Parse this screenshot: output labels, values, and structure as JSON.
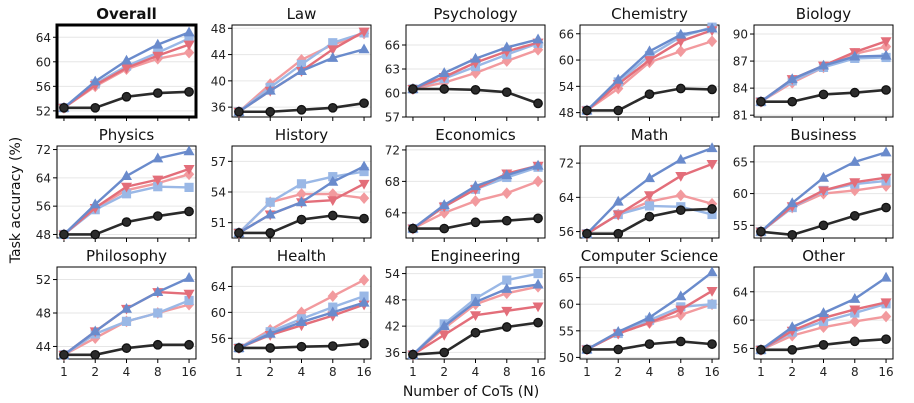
{
  "chart_data": {
    "type": "line",
    "xlabel": "Number of CoTs (N)",
    "ylabel": "Task accuracy (%)",
    "x": [
      1,
      2,
      4,
      8,
      16
    ],
    "x_tick_labels": [
      "1",
      "2",
      "4",
      "8",
      "16"
    ],
    "grid": "horizontal",
    "series_styles": [
      {
        "color": "#6a8bcc",
        "marker": "triangle"
      },
      {
        "color": "#e36e7a",
        "marker": "triangle-down"
      },
      {
        "color": "#9ab8e6",
        "marker": "square"
      },
      {
        "color": "#f29a9e",
        "marker": "diamond"
      },
      {
        "color": "#2b2b2b",
        "marker": "circle"
      }
    ],
    "panels": [
      {
        "title": "Overall",
        "highlight": true,
        "ylim": [
          51,
          66
        ],
        "yticks": [
          52,
          56,
          60,
          64
        ],
        "series": [
          [
            52.5,
            56.8,
            60.2,
            62.8,
            64.8
          ],
          [
            52.5,
            56.2,
            59.0,
            61.0,
            62.8
          ],
          [
            52.5,
            56.4,
            59.3,
            61.5,
            63.8
          ],
          [
            52.5,
            56.0,
            58.8,
            60.5,
            61.5
          ],
          [
            52.5,
            52.5,
            54.3,
            54.9,
            55.1
          ]
        ]
      },
      {
        "title": "Law",
        "ylim": [
          34.5,
          48.5
        ],
        "yticks": [
          36,
          40,
          44,
          48
        ],
        "series": [
          [
            35.3,
            38.5,
            41.5,
            43.5,
            44.8
          ],
          [
            35.3,
            38.5,
            41.5,
            44.8,
            47.5
          ],
          [
            35.3,
            39.0,
            42.5,
            45.8,
            47.3
          ],
          [
            35.3,
            39.5,
            43.2,
            45.5,
            47.2
          ],
          [
            35.3,
            35.3,
            35.6,
            35.9,
            36.6
          ]
        ]
      },
      {
        "title": "Psychology",
        "ylim": [
          57,
          68.5
        ],
        "yticks": [
          57,
          60,
          63,
          66
        ],
        "series": [
          [
            60.5,
            62.5,
            64.3,
            65.7,
            66.7
          ],
          [
            60.5,
            62.0,
            63.8,
            65.2,
            66.3
          ],
          [
            60.5,
            61.8,
            63.3,
            64.8,
            66.2
          ],
          [
            60.5,
            61.3,
            62.5,
            64.0,
            65.4
          ],
          [
            60.5,
            60.5,
            60.4,
            60.1,
            58.7
          ]
        ]
      },
      {
        "title": "Chemistry",
        "ylim": [
          47,
          68
        ],
        "yticks": [
          48,
          54,
          60,
          66
        ],
        "series": [
          [
            48.5,
            55.5,
            62.0,
            65.8,
            67.2
          ],
          [
            48.5,
            54.5,
            60.0,
            64.3,
            66.8
          ],
          [
            48.5,
            55.0,
            61.0,
            65.3,
            67.5
          ],
          [
            48.5,
            53.5,
            59.5,
            62.0,
            64.3
          ],
          [
            48.5,
            48.5,
            52.2,
            53.5,
            53.3
          ]
        ]
      },
      {
        "title": "Biology",
        "ylim": [
          80.8,
          91
        ],
        "yticks": [
          81,
          84,
          87,
          90
        ],
        "series": [
          [
            82.5,
            85.0,
            86.5,
            87.5,
            87.6
          ],
          [
            82.5,
            85.0,
            86.5,
            88.0,
            89.2
          ],
          [
            82.5,
            84.8,
            86.3,
            87.3,
            87.4
          ],
          [
            82.5,
            84.6,
            86.3,
            87.8,
            88.6
          ],
          [
            82.5,
            82.5,
            83.3,
            83.5,
            83.8
          ]
        ]
      },
      {
        "title": "Physics",
        "ylim": [
          47,
          73
        ],
        "yticks": [
          48,
          56,
          64,
          72
        ],
        "series": [
          [
            48.0,
            56.5,
            64.5,
            69.5,
            71.5
          ],
          [
            48.0,
            55.5,
            61.5,
            63.5,
            66.5
          ],
          [
            48.0,
            55.0,
            59.5,
            61.5,
            61.3
          ],
          [
            48.0,
            55.5,
            60.5,
            62.5,
            65.0
          ],
          [
            48.0,
            48.0,
            51.5,
            53.2,
            54.5
          ]
        ]
      },
      {
        "title": "History",
        "ylim": [
          49.5,
          58.5
        ],
        "yticks": [
          51,
          54,
          57
        ],
        "series": [
          [
            50.0,
            51.8,
            53.0,
            55.0,
            56.5
          ],
          [
            50.0,
            51.8,
            53.0,
            53.2,
            54.8
          ],
          [
            50.0,
            53.0,
            54.8,
            55.5,
            56.0
          ],
          [
            50.0,
            53.0,
            53.8,
            53.8,
            53.4
          ],
          [
            50.0,
            50.0,
            51.3,
            51.7,
            51.4
          ]
        ]
      },
      {
        "title": "Economics",
        "ylim": [
          60.8,
          72.5
        ],
        "yticks": [
          64,
          68,
          72
        ],
        "series": [
          [
            62.0,
            65.0,
            67.4,
            68.8,
            70.0
          ],
          [
            62.0,
            64.8,
            67.0,
            69.0,
            70.0
          ],
          [
            62.0,
            64.8,
            67.0,
            68.5,
            69.8
          ],
          [
            62.0,
            64.0,
            65.5,
            66.5,
            68.0
          ],
          [
            62.0,
            62.0,
            62.8,
            63.0,
            63.3
          ]
        ]
      },
      {
        "title": "Math",
        "ylim": [
          54.5,
          76
        ],
        "yticks": [
          56,
          64,
          72
        ],
        "series": [
          [
            55.5,
            63.0,
            68.5,
            72.8,
            75.5
          ],
          [
            55.5,
            60.0,
            64.5,
            69.0,
            71.8
          ],
          [
            55.5,
            60.0,
            62.0,
            61.8,
            60.0
          ],
          [
            55.5,
            60.0,
            63.0,
            64.5,
            62.5
          ],
          [
            55.5,
            55.5,
            59.5,
            61.0,
            61.3
          ]
        ]
      },
      {
        "title": "Business",
        "ylim": [
          53,
          67.5
        ],
        "yticks": [
          55,
          60,
          65
        ],
        "series": [
          [
            54.0,
            58.5,
            62.5,
            65.0,
            66.5
          ],
          [
            54.0,
            58.0,
            60.5,
            61.8,
            62.5
          ],
          [
            54.0,
            57.8,
            60.5,
            61.5,
            62.0
          ],
          [
            54.0,
            57.8,
            60.0,
            60.5,
            61.2
          ],
          [
            54.0,
            53.5,
            55.0,
            56.5,
            57.8
          ]
        ]
      },
      {
        "title": "Philosophy",
        "ylim": [
          42.5,
          53.5
        ],
        "yticks": [
          44,
          48,
          52
        ],
        "series": [
          [
            43.0,
            45.8,
            48.5,
            50.5,
            52.2
          ],
          [
            43.0,
            45.8,
            48.5,
            50.5,
            50.3
          ],
          [
            43.0,
            45.5,
            47.0,
            48.0,
            49.5
          ],
          [
            43.0,
            45.0,
            47.0,
            48.0,
            49.0
          ],
          [
            43.0,
            43.0,
            43.8,
            44.2,
            44.2
          ]
        ]
      },
      {
        "title": "Health",
        "ylim": [
          52.8,
          67
        ],
        "yticks": [
          56,
          60,
          64
        ],
        "series": [
          [
            54.5,
            56.7,
            58.5,
            60.0,
            61.5
          ],
          [
            54.5,
            56.5,
            58.0,
            59.5,
            61.2
          ],
          [
            54.5,
            57.0,
            59.0,
            60.8,
            62.5
          ],
          [
            54.5,
            57.3,
            60.0,
            62.5,
            65.0
          ],
          [
            54.5,
            54.5,
            54.7,
            54.8,
            55.2
          ]
        ]
      },
      {
        "title": "Engineering",
        "ylim": [
          34.5,
          55.5
        ],
        "yticks": [
          36,
          42,
          48,
          54
        ],
        "series": [
          [
            35.5,
            42.0,
            47.5,
            50.5,
            51.5
          ],
          [
            35.5,
            40.0,
            44.5,
            45.5,
            46.5
          ],
          [
            35.5,
            42.5,
            48.3,
            52.5,
            54.0
          ],
          [
            35.5,
            41.5,
            47.0,
            49.5,
            51.0
          ],
          [
            35.5,
            36.0,
            40.5,
            41.8,
            42.8
          ]
        ]
      },
      {
        "title": "Computer Science",
        "ylim": [
          49.7,
          67
        ],
        "yticks": [
          50,
          55,
          60,
          65
        ],
        "series": [
          [
            51.5,
            54.8,
            57.5,
            61.5,
            66.0
          ],
          [
            51.5,
            54.5,
            56.5,
            59.0,
            62.5
          ],
          [
            51.5,
            54.5,
            57.0,
            59.5,
            60.0
          ],
          [
            51.5,
            54.5,
            56.5,
            58.0,
            60.0
          ],
          [
            51.5,
            51.5,
            52.5,
            53.0,
            52.5
          ]
        ]
      },
      {
        "title": "Other",
        "ylim": [
          54.5,
          67.5
        ],
        "yticks": [
          56,
          60,
          64
        ],
        "series": [
          [
            55.8,
            59.0,
            61.0,
            63.0,
            66.0
          ],
          [
            55.8,
            58.5,
            60.3,
            61.5,
            62.5
          ],
          [
            55.8,
            58.3,
            59.8,
            61.0,
            62.3
          ],
          [
            55.8,
            57.8,
            59.0,
            59.8,
            60.5
          ],
          [
            55.8,
            55.8,
            56.5,
            57.0,
            57.3
          ]
        ]
      }
    ]
  }
}
